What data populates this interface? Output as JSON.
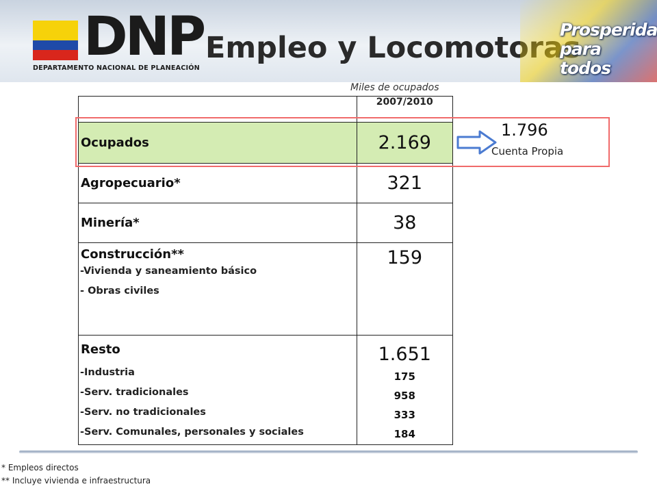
{
  "header": {
    "logo_text": "DNP",
    "logo_subtitle": "DEPARTAMENTO NACIONAL DE PLANEACIÓN",
    "title": "Empleo y Locomotoras",
    "badge_line1": "Prosperidad",
    "badge_line2": "para todos"
  },
  "units_note": "Miles de ocupados",
  "table": {
    "column_header": "2007/2010",
    "rows": {
      "ocupados": {
        "label": "Ocupados",
        "value": "2.169"
      },
      "agropecuario": {
        "label": "Agropecuario*",
        "value": "321"
      },
      "mineria": {
        "label": "Minería*",
        "value": "38"
      },
      "construccion": {
        "label": "Construcción**",
        "value": "159",
        "sub": [
          "-Vivienda y saneamiento básico",
          "- Obras civiles"
        ]
      },
      "resto": {
        "label": "Resto",
        "value": "1.651",
        "sub": [
          "-Industria",
          "-Serv. tradicionales",
          "-Serv. no tradicionales",
          "-Serv. Comunales, personales y sociales"
        ],
        "sub_values": [
          "175",
          "958",
          "333",
          "184"
        ]
      }
    }
  },
  "callout": {
    "value": "1.796",
    "label": "Cuenta Propia"
  },
  "footnotes": [
    "* Empleos directos",
    "** Incluye vivienda e infraestructura"
  ],
  "colors": {
    "ocupados_row": "#d4ecb3",
    "highlight_border": "#f06a6a",
    "arrow_blue": "#4b7bd1"
  }
}
